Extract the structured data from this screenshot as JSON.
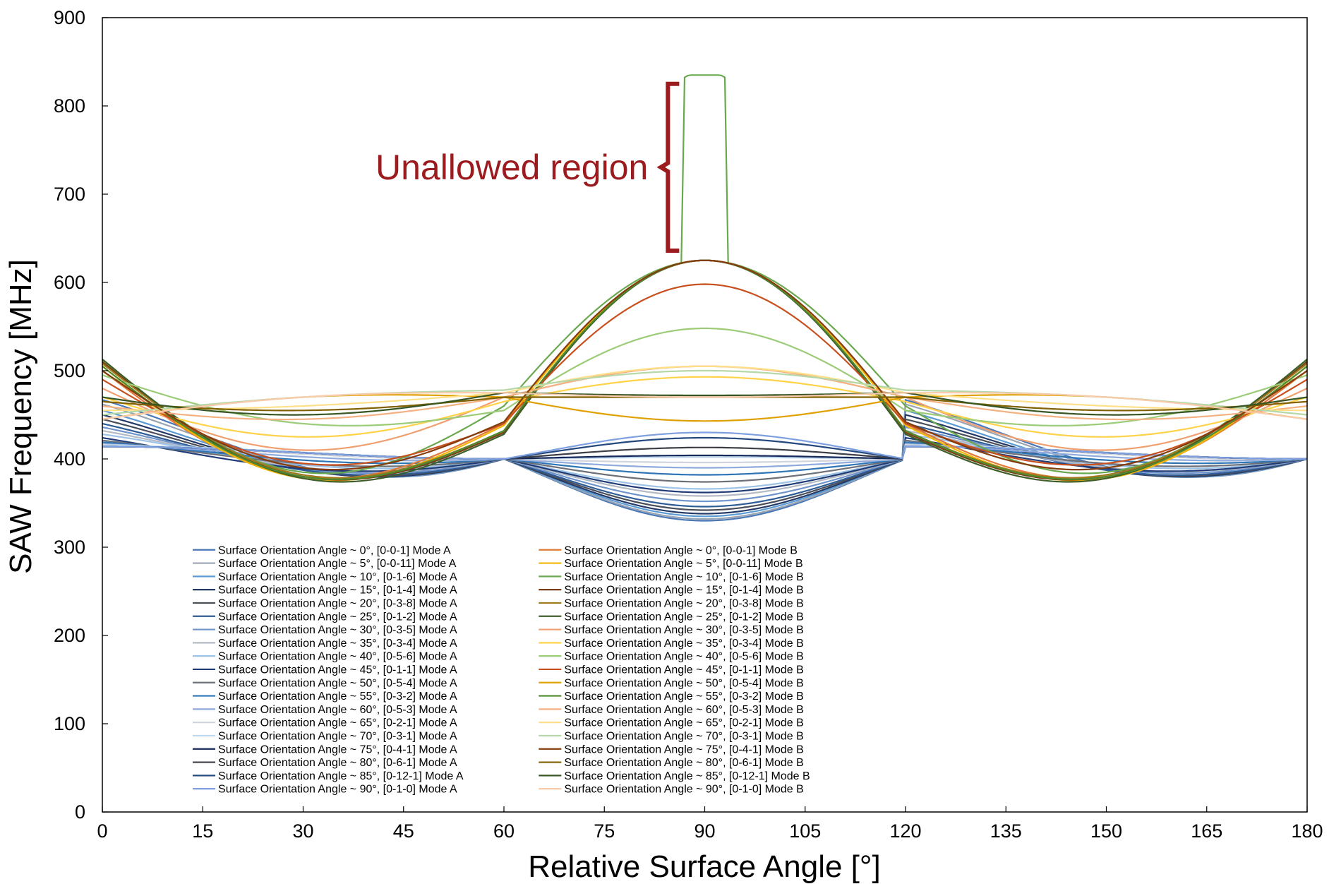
{
  "chart_data": {
    "type": "line",
    "xlabel": "Relative Surface Angle [°]",
    "ylabel": "SAW Frequency [MHz]",
    "xlim": [
      0,
      180
    ],
    "ylim": [
      0,
      900
    ],
    "x_ticks": [
      0,
      15,
      30,
      45,
      60,
      75,
      90,
      105,
      120,
      135,
      150,
      165,
      180
    ],
    "y_ticks": [
      0,
      100,
      200,
      300,
      400,
      500,
      600,
      700,
      800,
      900
    ],
    "grid": false,
    "legend_position": "lower-center",
    "annotation": {
      "text": "Unallowed region",
      "color": "#9b1b1e",
      "x": 84.5,
      "y_range": [
        636,
        825
      ]
    },
    "series": [
      {
        "name": "Surface Orientation Angle ~ 0°, [0-0-1] Mode A",
        "color": "#4878b8",
        "mode": "A",
        "params": {
          "f0": 467,
          "f60": 400,
          "fmid": 330
        }
      },
      {
        "name": "Surface Orientation Angle ~ 5°, [0-0-11] Mode A",
        "color": "#9aa4b2",
        "mode": "A",
        "params": {
          "f0": 462,
          "f60": 400,
          "fmid": 332
        }
      },
      {
        "name": "Surface Orientation Angle ~ 10°, [0-1-6] Mode A",
        "color": "#5a9bd5",
        "mode": "A",
        "params": {
          "f0": 455,
          "f60": 400,
          "fmid": 335
        }
      },
      {
        "name": "Surface Orientation Angle ~ 15°, [0-1-4] Mode A",
        "color": "#263a66",
        "mode": "A",
        "params": {
          "f0": 450,
          "f60": 400,
          "fmid": 338
        }
      },
      {
        "name": "Surface Orientation Angle ~ 20°, [0-3-8] Mode A",
        "color": "#4a4e58",
        "mode": "A",
        "params": {
          "f0": 445,
          "f60": 400,
          "fmid": 342
        }
      },
      {
        "name": "Surface Orientation Angle ~ 25°, [0-1-2] Mode A",
        "color": "#2e5c96",
        "mode": "A",
        "params": {
          "f0": 440,
          "f60": 400,
          "fmid": 346
        }
      },
      {
        "name": "Surface Orientation Angle ~ 30°, [0-3-5] Mode A",
        "color": "#6f94cc",
        "mode": "A",
        "params": {
          "f0": 436,
          "f60": 400,
          "fmid": 352
        }
      },
      {
        "name": "Surface Orientation Angle ~ 35°, [0-3-4] Mode A",
        "color": "#b4bac4",
        "mode": "A",
        "params": {
          "f0": 432,
          "f60": 400,
          "fmid": 358
        }
      },
      {
        "name": "Surface Orientation Angle ~ 40°, [0-5-6] Mode A",
        "color": "#9cc3e6",
        "mode": "A",
        "params": {
          "f0": 428,
          "f60": 400,
          "fmid": 366
        }
      },
      {
        "name": "Surface Orientation Angle ~ 45°, [0-1-1] Mode A",
        "color": "#1f3c78",
        "mode": "A",
        "params": {
          "f0": 424,
          "f60": 400,
          "fmid": 362
        }
      },
      {
        "name": "Surface Orientation Angle ~ 50°, [0-5-4] Mode A",
        "color": "#6e7078",
        "mode": "A",
        "params": {
          "f0": 421,
          "f60": 400,
          "fmid": 374
        }
      },
      {
        "name": "Surface Orientation Angle ~ 55°, [0-3-2] Mode A",
        "color": "#2e75b6",
        "mode": "A",
        "params": {
          "f0": 419,
          "f60": 400,
          "fmid": 382
        }
      },
      {
        "name": "Surface Orientation Angle ~ 60°, [0-5-3] Mode A",
        "color": "#8faadc",
        "mode": "A",
        "params": {
          "f0": 417,
          "f60": 400,
          "fmid": 390
        }
      },
      {
        "name": "Surface Orientation Angle ~ 65°, [0-2-1] Mode A",
        "color": "#d0d4dc",
        "mode": "A",
        "params": {
          "f0": 416,
          "f60": 400,
          "fmid": 396
        }
      },
      {
        "name": "Surface Orientation Angle ~ 70°, [0-3-1] Mode A",
        "color": "#bdd7ee",
        "mode": "A",
        "params": {
          "f0": 415,
          "f60": 400,
          "fmid": 402
        }
      },
      {
        "name": "Surface Orientation Angle ~ 75°, [0-4-1] Mode A",
        "color": "#14285a",
        "mode": "A",
        "params": {
          "f0": 414,
          "f60": 400,
          "fmid": 404
        }
      },
      {
        "name": "Surface Orientation Angle ~ 80°, [0-6-1] Mode A",
        "color": "#3c3f46",
        "mode": "A",
        "params": {
          "f0": 414,
          "f60": 400,
          "fmid": 413
        }
      },
      {
        "name": "Surface Orientation Angle ~ 85°, [0-12-1] Mode A",
        "color": "#24497e",
        "mode": "A",
        "params": {
          "f0": 414,
          "f60": 400,
          "fmid": 424
        }
      },
      {
        "name": "Surface Orientation Angle ~ 90°, [0-1-0] Mode A",
        "color": "#7fa0e0",
        "mode": "A",
        "params": {
          "f0": 414,
          "f60": 400,
          "fmid": 430
        }
      },
      {
        "name": "Surface Orientation Angle ~ 0°, [0-0-1] Mode B",
        "color": "#e07b39",
        "mode": "B",
        "params": {
          "f0": 500,
          "f30": 380,
          "f60": 440,
          "f90": 625
        }
      },
      {
        "name": "Surface Orientation Angle ~ 5°, [0-0-11] Mode B",
        "color": "#f2b705",
        "mode": "B",
        "params": {
          "f0": 505,
          "f30": 378,
          "f60": 438,
          "f90": 625
        }
      },
      {
        "name": "Surface Orientation Angle ~ 10°, [0-1-6] Mode B",
        "color": "#6aa84f",
        "mode": "B",
        "params": {
          "f0": 512,
          "f30": 385,
          "f60": 460,
          "f90": 835,
          "spike": true
        }
      },
      {
        "name": "Surface Orientation Angle ~ 15°, [0-1-4] Mode B",
        "color": "#7a3f16",
        "mode": "B",
        "params": {
          "f0": 510,
          "f30": 380,
          "f60": 430,
          "f90": 625
        }
      },
      {
        "name": "Surface Orientation Angle ~ 20°, [0-3-8] Mode B",
        "color": "#a07a1e",
        "mode": "B",
        "params": {
          "f0": 508,
          "f30": 382,
          "f60": 432,
          "f90": 625
        }
      },
      {
        "name": "Surface Orientation Angle ~ 25°, [0-1-2] Mode B",
        "color": "#3f5f2a",
        "mode": "B",
        "params": {
          "f0": 513,
          "f30": 378,
          "f60": 428,
          "f90": 625
        }
      },
      {
        "name": "Surface Orientation Angle ~ 30°, [0-3-5] Mode B",
        "color": "#f0a070",
        "mode": "B",
        "params": {
          "f0": 480,
          "f30": 410,
          "f60": 470,
          "f90": 505
        }
      },
      {
        "name": "Surface Orientation Angle ~ 35°, [0-3-4] Mode B",
        "color": "#ffd24a",
        "mode": "B",
        "params": {
          "f0": 470,
          "f30": 425,
          "f60": 465,
          "f90": 493
        }
      },
      {
        "name": "Surface Orientation Angle ~ 40°, [0-5-6] Mode B",
        "color": "#9ccc78",
        "mode": "B",
        "params": {
          "f0": 495,
          "f30": 440,
          "f60": 455,
          "f90": 548
        }
      },
      {
        "name": "Surface Orientation Angle ~ 45°, [0-1-1] Mode B",
        "color": "#c8501e",
        "mode": "B",
        "params": {
          "f0": 490,
          "f30": 395,
          "f60": 440,
          "f90": 598
        }
      },
      {
        "name": "Surface Orientation Angle ~ 50°, [0-5-4] Mode B",
        "color": "#e0a000",
        "mode": "B",
        "params": {
          "f0": 445,
          "f30": 470,
          "f60": 470,
          "f90": 443
        }
      },
      {
        "name": "Surface Orientation Angle ~ 55°, [0-3-2] Mode B",
        "color": "#4f8a2e",
        "mode": "B",
        "params": {
          "f0": 505,
          "f30": 380,
          "f60": 432,
          "f90": 625
        }
      },
      {
        "name": "Surface Orientation Angle ~ 60°, [0-5-3] Mode B",
        "color": "#f4b183",
        "mode": "B",
        "params": {
          "f0": 460,
          "f30": 445,
          "f60": 470,
          "f90": 505
        }
      },
      {
        "name": "Surface Orientation Angle ~ 65°, [0-2-1] Mode B",
        "color": "#ffe08a",
        "mode": "B",
        "params": {
          "f0": 455,
          "f30": 460,
          "f60": 475,
          "f90": 505
        }
      },
      {
        "name": "Surface Orientation Angle ~ 70°, [0-3-1] Mode B",
        "color": "#b6d7a8",
        "mode": "B",
        "params": {
          "f0": 450,
          "f30": 470,
          "f60": 478,
          "f90": 500
        }
      },
      {
        "name": "Surface Orientation Angle ~ 75°, [0-4-1] Mode B",
        "color": "#843c0c",
        "mode": "B",
        "params": {
          "f0": 500,
          "f30": 390,
          "f60": 442,
          "f90": 625
        }
      },
      {
        "name": "Surface Orientation Angle ~ 80°, [0-6-1] Mode B",
        "color": "#806000",
        "mode": "B",
        "params": {
          "f0": 465,
          "f30": 455,
          "f60": 470,
          "f90": 470
        }
      },
      {
        "name": "Surface Orientation Angle ~ 85°, [0-12-1] Mode B",
        "color": "#375623",
        "mode": "B",
        "params": {
          "f0": 470,
          "f30": 450,
          "f60": 475,
          "f90": 472
        }
      },
      {
        "name": "Surface Orientation Angle ~ 90°, [0-1-0] Mode B",
        "color": "#f8cbad",
        "mode": "B",
        "params": {
          "f0": 445,
          "f30": 470,
          "f60": 475,
          "f90": 470
        }
      }
    ]
  }
}
